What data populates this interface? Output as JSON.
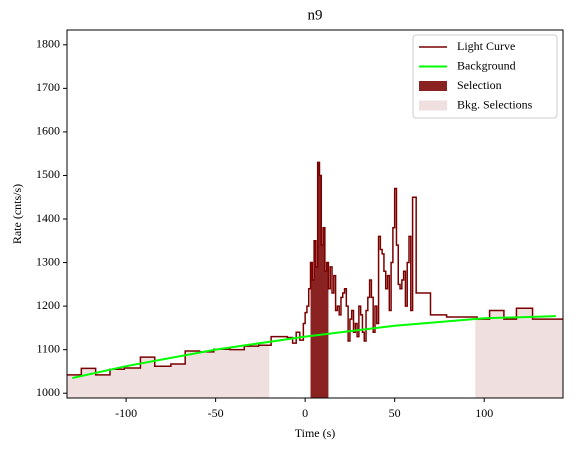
{
  "chart_data": {
    "type": "step",
    "title": "n9",
    "xlabel": "Time (s)",
    "ylabel": "Rate (cnts/s)",
    "xlim": [
      -133,
      144
    ],
    "ylim": [
      989,
      1834
    ],
    "xticks": [
      -100,
      -50,
      0,
      50,
      100
    ],
    "yticks": [
      1000,
      1100,
      1200,
      1300,
      1400,
      1500,
      1600,
      1700,
      1800
    ],
    "legend": "upper right",
    "series": [
      {
        "name": "Light Curve",
        "color": "#7a0000",
        "x": [
          -133,
          -125,
          -117,
          -109,
          -101,
          -92,
          -84,
          -75,
          -67,
          -59,
          -51,
          -42,
          -34,
          -26,
          -19,
          -10,
          -7,
          -5,
          -3,
          -1,
          0,
          1,
          2,
          3,
          4,
          5,
          6,
          7,
          8,
          9,
          10,
          11,
          12,
          13,
          14,
          15,
          16,
          17,
          18,
          19,
          20,
          21,
          22,
          23,
          24,
          25,
          26,
          27,
          28,
          29,
          30,
          31,
          32,
          33,
          34,
          35,
          36,
          37,
          38,
          39,
          40,
          41,
          42,
          43,
          44,
          45,
          46,
          47,
          48,
          49,
          50,
          51,
          52,
          53,
          54,
          55,
          56,
          57,
          58,
          59,
          60,
          62,
          70,
          79,
          96,
          103,
          111,
          118,
          127,
          144
        ],
        "values": [
          1042,
          1057,
          1042,
          1055,
          1058,
          1083,
          1062,
          1067,
          1097,
          1095,
          1101,
          1100,
          1108,
          1110,
          1130,
          1128,
          1115,
          1140,
          1122,
          1160,
          1185,
          1200,
          1240,
          1300,
          1260,
          1350,
          1290,
          1530,
          1500,
          1340,
          1380,
          1280,
          1300,
          1240,
          1290,
          1230,
          1270,
          1190,
          1200,
          1180,
          1220,
          1230,
          1240,
          1200,
          1120,
          1170,
          1190,
          1140,
          1160,
          1130,
          1200,
          1180,
          1140,
          1120,
          1190,
          1220,
          1260,
          1220,
          1140,
          1200,
          1160,
          1360,
          1330,
          1320,
          1280,
          1240,
          1270,
          1190,
          1300,
          1380,
          1470,
          1340,
          1250,
          1240,
          1260,
          1280,
          1200,
          1300,
          1360,
          1190,
          1450,
          1230,
          1180,
          1175,
          1170,
          1190,
          1170,
          1195,
          1170,
          1170
        ]
      },
      {
        "name": "Background",
        "color": "#00ff00",
        "x": [
          -130,
          -100,
          -50,
          0,
          50,
          100,
          140
        ],
        "values": [
          1035,
          1062,
          1100,
          1130,
          1155,
          1172,
          1177
        ]
      }
    ],
    "selections": [
      {
        "name": "Selection",
        "color": "#8b2222",
        "ranges": [
          [
            3,
            13
          ]
        ]
      },
      {
        "name": "Bkg. Selections",
        "color": "#efdfdf",
        "ranges": [
          [
            -133,
            -20
          ],
          [
            95,
            144
          ]
        ]
      }
    ]
  }
}
